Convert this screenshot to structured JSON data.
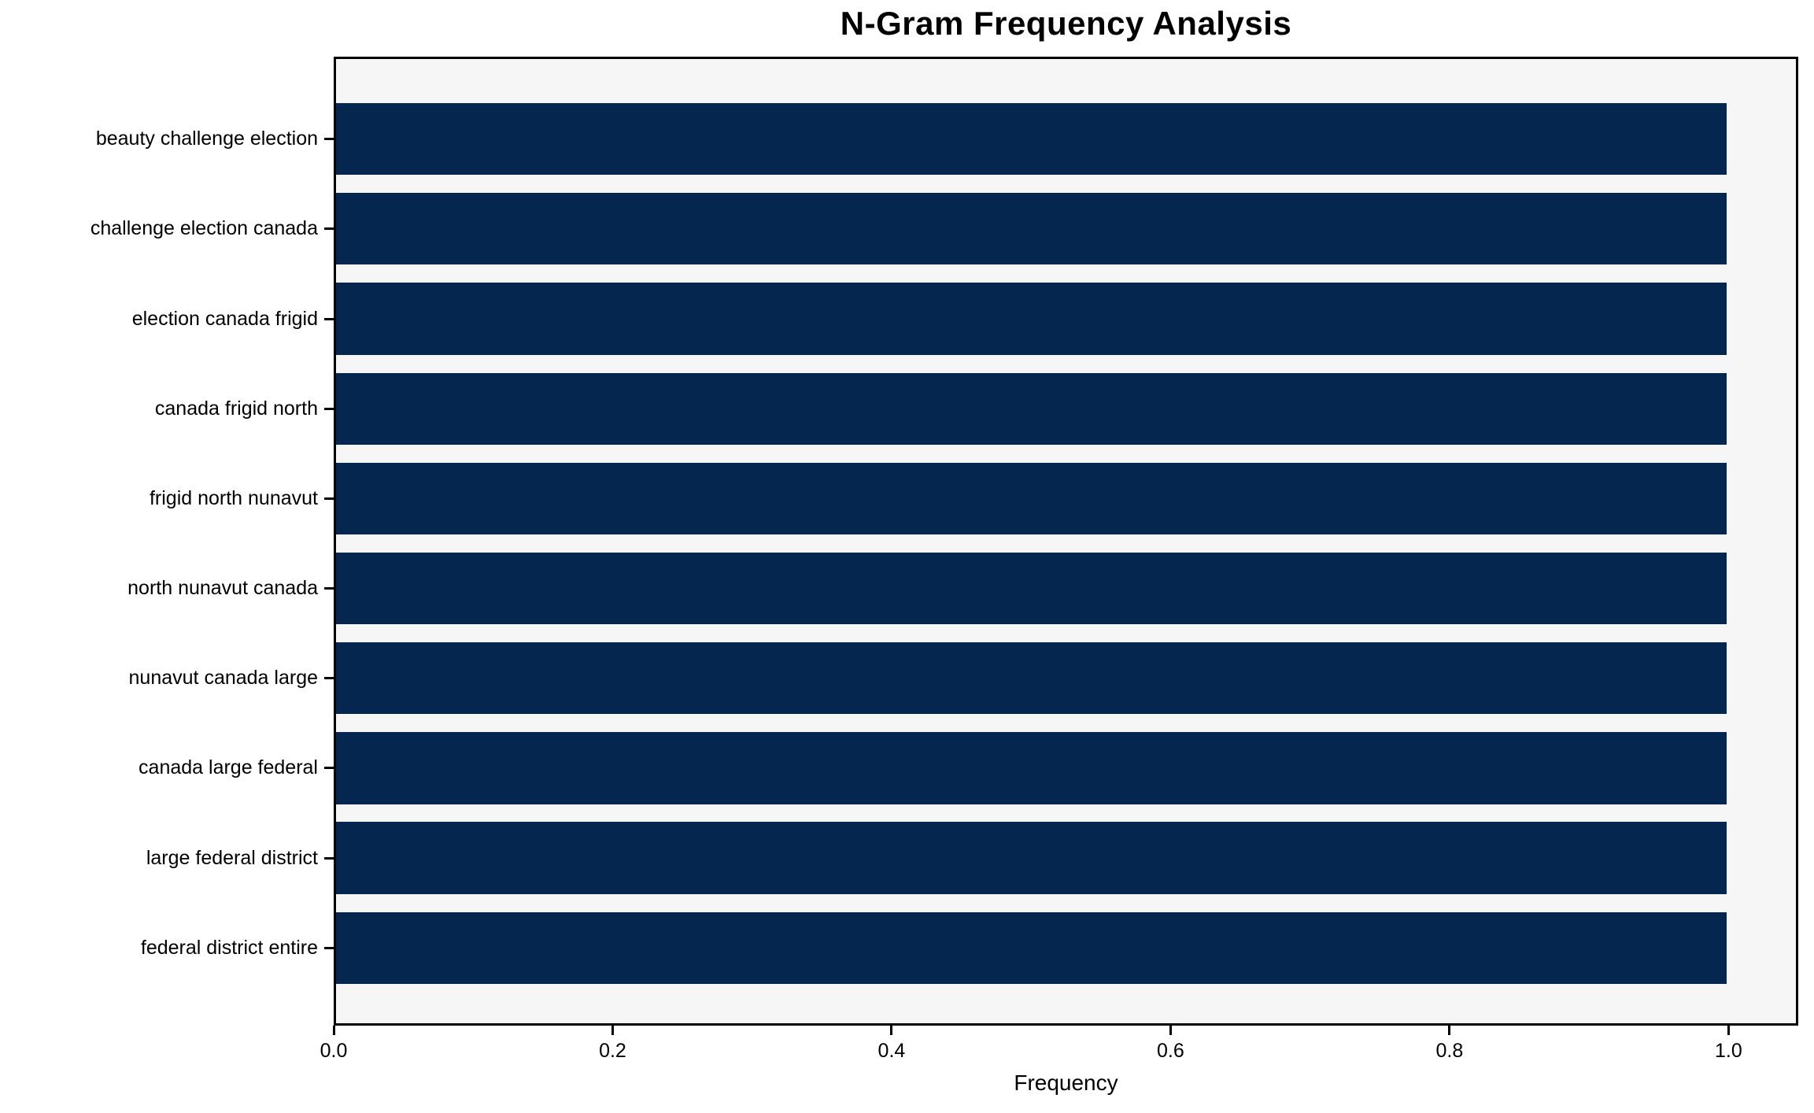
{
  "title": "N-Gram Frequency Analysis",
  "colors": {
    "bar": "#05274f",
    "plot_background": "#f6f6f7",
    "figure_background": "#ffffff",
    "spine": "#000000",
    "text": "#000000"
  },
  "chart_data": {
    "type": "bar",
    "orientation": "horizontal",
    "title": "N-Gram Frequency Analysis",
    "xlabel": "Frequency",
    "ylabel": "",
    "categories": [
      "beauty challenge election",
      "challenge election canada",
      "election canada frigid",
      "canada frigid north",
      "frigid north nunavut",
      "north nunavut canada",
      "nunavut canada large",
      "canada large federal",
      "large federal district",
      "federal district entire"
    ],
    "values": [
      1.0,
      1.0,
      1.0,
      1.0,
      1.0,
      1.0,
      1.0,
      1.0,
      1.0,
      1.0
    ],
    "xlim": [
      0.0,
      1.05
    ],
    "xticks": [
      0.0,
      0.2,
      0.4,
      0.6,
      0.8,
      1.0
    ],
    "xtick_labels": [
      "0.0",
      "0.2",
      "0.4",
      "0.6",
      "0.8",
      "1.0"
    ],
    "bar_height_fraction": 0.8,
    "grid": false,
    "legend": false,
    "bar_color": "#05274f"
  }
}
